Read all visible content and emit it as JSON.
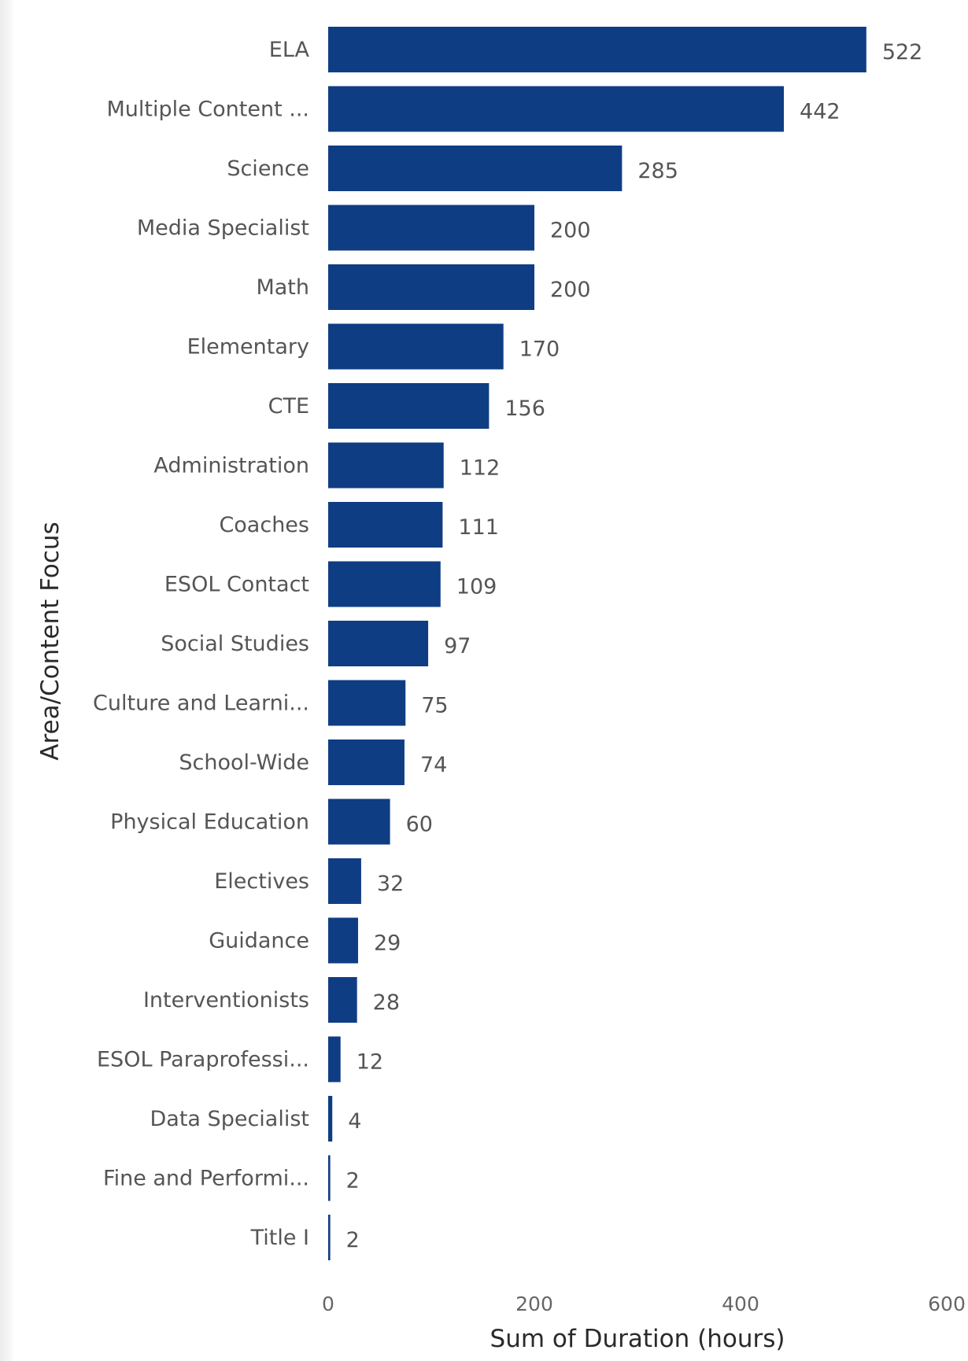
{
  "chart_data": {
    "type": "bar",
    "orientation": "horizontal",
    "categories": [
      "ELA",
      "Multiple Content ...",
      "Science",
      "Media Specialist",
      "Math",
      "Elementary",
      "CTE",
      "Administration",
      "Coaches",
      "ESOL Contact",
      "Social Studies",
      "Culture and Learni...",
      "School-Wide",
      "Physical Education",
      "Electives",
      "Guidance",
      "Interventionists",
      "ESOL Paraprofessi...",
      "Data Specialist",
      "Fine and Performi...",
      "Title I"
    ],
    "values": [
      522,
      442,
      285,
      200,
      200,
      170,
      156,
      112,
      111,
      109,
      97,
      75,
      74,
      60,
      32,
      29,
      28,
      12,
      4,
      2,
      2
    ],
    "xlabel": "Sum of Duration (hours)",
    "ylabel": "Area/Content Focus",
    "xlim": [
      0,
      600
    ],
    "xticks": [
      "0",
      "200",
      "400",
      "600"
    ],
    "bar_color": "#0f3d84",
    "grid": false,
    "data_labels": true
  }
}
